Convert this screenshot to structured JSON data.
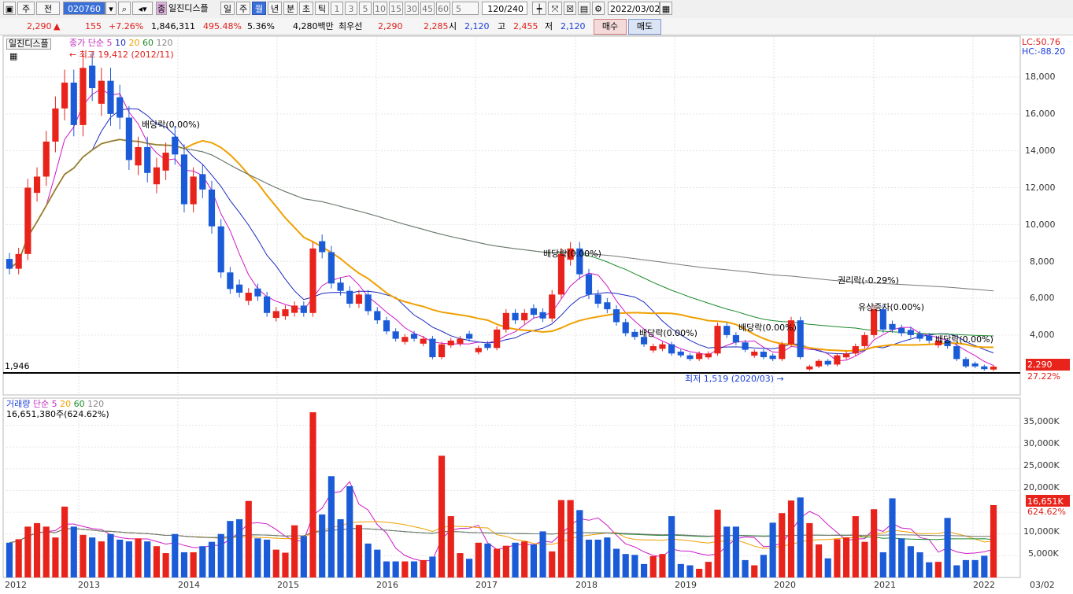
{
  "toolbar": {
    "period_buttons": [
      "주",
      "전"
    ],
    "stock_code": "020760",
    "stock_name": "일진디스플",
    "tab_day": "일",
    "tab_week": "주",
    "tab_month": "월",
    "tab_year": "년",
    "tab_minute": "분",
    "tab_second": "초",
    "tab_tick": "틱",
    "intervals": [
      "1",
      "3",
      "5",
      "10",
      "15",
      "30",
      "45",
      "60"
    ],
    "interval_select": "5",
    "bar_count": "120/240",
    "date": "2022/03/02"
  },
  "infobar": {
    "price": "2,290",
    "change": "155",
    "change_pct": "+7.26%",
    "volume": "1,846,311",
    "volume_pct": "495.48%",
    "turnover": "5.36%",
    "amount": "4,280백만",
    "best_ask_label": "최우선",
    "ask": "2,290",
    "bid": "2,285",
    "open_label": "시",
    "open": "2,120",
    "high_label": "고",
    "high": "2,455",
    "low_label": "저",
    "low": "2,120",
    "buy": "매수",
    "sell": "매도"
  },
  "price_panel": {
    "stock_tag": "일진디스플",
    "legend_price": "종가 단순",
    "ma_labels": [
      "5",
      "10",
      "20",
      "60",
      "120"
    ],
    "max_annotation": "최고 19,412 (2012/11)",
    "min_annotation": "최저 1,519 (2020/03)",
    "ref_line_label": "1,946",
    "lc_label": "LC:50.76",
    "hc_label": "HC:-88.20",
    "current_price_tag": "2,290",
    "current_pct_tag": "27.22%",
    "dividend_labels": [
      "배당락(0.00%)",
      "배당락(0.00%)",
      "배당락(0.00%)",
      "배당락(0.00%)",
      "권리락(-0.29%)",
      "유상증자(0.00%)",
      "배당락(0.00%)"
    ],
    "y_ticks": [
      "18,000",
      "16,000",
      "14,000",
      "12,000",
      "10,000",
      "8,000",
      "6,000",
      "4,000"
    ]
  },
  "volume_panel": {
    "legend_volume": "거래량",
    "legend_ma": "단순",
    "ma_labels": [
      "5",
      "20",
      "60",
      "120"
    ],
    "volume_info": "16,651,380주(624.62%)",
    "current_volume_tag": "16,651K",
    "current_volume_pct": "624.62%",
    "y_ticks": [
      "35,000K",
      "30,000K",
      "25,000K",
      "20,000K",
      "15,000K",
      "10,000K",
      "5,000K"
    ]
  },
  "x_axis": [
    "2012",
    "2013",
    "2014",
    "2015",
    "2016",
    "2017",
    "2018",
    "2019",
    "2020",
    "2021",
    "2022",
    "03/02"
  ],
  "colors": {
    "up": "#e8231b",
    "down": "#1b5bd8",
    "ma5": "#d019c8",
    "ma10": "#1a2bbf",
    "ma20": "#f0a000",
    "ma60": "#1c8a2a",
    "ma120": "#777777"
  },
  "chart_data": {
    "type": "candlestick",
    "period": "monthly",
    "ylim_price": [
      1519,
      19412
    ],
    "ylim_volume": [
      0,
      38000000
    ],
    "closes": [
      7600,
      8400,
      12000,
      12600,
      14500,
      16300,
      17700,
      15400,
      18500,
      17400,
      17800,
      16000,
      15800,
      13500,
      14200,
      12800,
      13100,
      13900,
      13800,
      11100,
      12600,
      11900,
      9900,
      7400,
      6500,
      6300,
      6300,
      6100,
      5200,
      5300,
      5400,
      5600,
      5200,
      8700,
      8500,
      6800,
      6400,
      5700,
      6200,
      5300,
      4800,
      4200,
      3800,
      3900,
      3800,
      3800,
      2800,
      3500,
      3700,
      3800,
      3800,
      3300,
      3300,
      4300,
      5200,
      4800,
      5200,
      5100,
      4900,
      6200,
      8400,
      8700,
      7300,
      6200,
      5700,
      5400,
      4700,
      4100,
      3900,
      3500,
      3400,
      3500,
      3000,
      2900,
      2700,
      3000,
      3000,
      4500,
      4000,
      3600,
      3200,
      3100,
      2800,
      2700,
      3500,
      4800,
      2800,
      2300,
      2600,
      2400,
      2900,
      3000,
      3400,
      4000,
      5400,
      4300,
      4300,
      4100,
      4000,
      3800,
      3700,
      3700,
      3400,
      2700,
      2300,
      2300,
      2150,
      2290
    ],
    "up_flags": [
      0,
      1,
      1,
      1,
      1,
      1,
      1,
      0,
      1,
      0,
      1,
      0,
      0,
      0,
      1,
      0,
      1,
      1,
      0,
      0,
      1,
      0,
      0,
      0,
      0,
      0,
      1,
      0,
      0,
      1,
      1,
      1,
      0,
      1,
      0,
      0,
      0,
      0,
      1,
      0,
      0,
      0,
      0,
      1,
      0,
      1,
      0,
      1,
      1,
      1,
      0,
      1,
      0,
      1,
      1,
      0,
      1,
      0,
      0,
      1,
      1,
      1,
      0,
      0,
      0,
      0,
      0,
      0,
      0,
      0,
      1,
      1,
      0,
      0,
      0,
      1,
      1,
      1,
      0,
      0,
      0,
      1,
      0,
      0,
      1,
      1,
      0,
      1,
      1,
      0,
      1,
      1,
      1,
      1,
      1,
      0,
      0,
      0,
      0,
      0,
      0,
      1,
      0,
      0,
      0,
      0,
      0,
      1
    ],
    "volumes": [
      8000000,
      8800000,
      11700000,
      12500000,
      11700000,
      9200000,
      16300000,
      11700000,
      9800000,
      9200000,
      8300000,
      10000000,
      8700000,
      8300000,
      9000000,
      8300000,
      7200000,
      5600000,
      10000000,
      5800000,
      5800000,
      7200000,
      8200000,
      10000000,
      13000000,
      13400000,
      17600000,
      9000000,
      8700000,
      6400000,
      5700000,
      12000000,
      9500000,
      38000000,
      14500000,
      23300000,
      13400000,
      21000000,
      12100000,
      7800000,
      6400000,
      3700000,
      3700000,
      3700000,
      3700000,
      4000000,
      4800000,
      28000000,
      14100000,
      5600000,
      4300000,
      8000000,
      7800000,
      6600000,
      7300000,
      8000000,
      8300000,
      7600000,
      10600000,
      6000000,
      17800000,
      17800000,
      15500000,
      8700000,
      8700000,
      9200000,
      6600000,
      5400000,
      5200000,
      3100000,
      4900000,
      5400000,
      14100000,
      3100000,
      2800000,
      2000000,
      3600000,
      15600000,
      11700000,
      11700000,
      4000000,
      2800000,
      5200000,
      12600000,
      14800000,
      17700000,
      18400000,
      12500000,
      7600000,
      4400000,
      8800000,
      9200000,
      14100000,
      8200000,
      15700000,
      5800000,
      18200000,
      9000000,
      7200000,
      5800000,
      3500000,
      3600000,
      13700000,
      2800000,
      4000000,
      4000000,
      5000000,
      16651380
    ]
  }
}
